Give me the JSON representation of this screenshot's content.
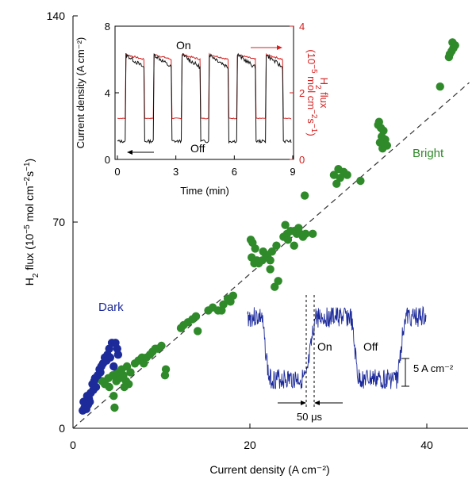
{
  "chart_data": [
    {
      "type": "scatter",
      "xlabel": "Current density (A cm⁻²)",
      "ylabel_parts": [
        "H",
        "2",
        " flux (10",
        "−5",
        " mol cm",
        "−2",
        "s",
        "−1",
        ")"
      ],
      "xlim": [
        0,
        45
      ],
      "ylim": [
        0,
        140
      ],
      "xticks": [
        0,
        20,
        40
      ],
      "yticks": [
        0,
        70,
        140
      ],
      "tick_labels_x": [
        "0",
        "20",
        "40"
      ],
      "tick_labels_y": [
        "0",
        "70",
        "140"
      ],
      "annotations": {
        "dark": "Dark",
        "bright": "Bright"
      },
      "colors": {
        "dark": "#1c2a9a",
        "bright": "#2f8a2a",
        "fit": "#333333"
      },
      "fit_line": {
        "x": [
          0,
          43
        ],
        "y": [
          0,
          116
        ]
      },
      "series": [
        {
          "name": "Dark",
          "color": "#1c2a9a",
          "points": [
            [
              1.1,
              6
            ],
            [
              1.3,
              7
            ],
            [
              1.5,
              6.5
            ],
            [
              1.7,
              8
            ],
            [
              1.2,
              9
            ],
            [
              1.8,
              10
            ],
            [
              2.0,
              12
            ],
            [
              2.3,
              13
            ],
            [
              1.6,
              11
            ],
            [
              2.2,
              15
            ],
            [
              2.4,
              16
            ],
            [
              2.6,
              14
            ],
            [
              2.8,
              18
            ],
            [
              3.0,
              20
            ],
            [
              3.2,
              21
            ],
            [
              3.4,
              22
            ],
            [
              3.1,
              19
            ],
            [
              3.6,
              24
            ],
            [
              3.9,
              25
            ],
            [
              4.1,
              27
            ],
            [
              4.4,
              29
            ],
            [
              4.8,
              29
            ],
            [
              5.0,
              27
            ],
            [
              3.8,
              23
            ],
            [
              2.5,
              17
            ],
            [
              1.9,
              9
            ],
            [
              5.1,
              25
            ],
            [
              4.6,
              21
            ],
            [
              4.2,
              24
            ]
          ]
        },
        {
          "name": "Bright",
          "color": "#2f8a2a",
          "points": [
            [
              3.3,
              16
            ],
            [
              3.6,
              15
            ],
            [
              4.0,
              17
            ],
            [
              4.5,
              18
            ],
            [
              4.9,
              16
            ],
            [
              5.3,
              17
            ],
            [
              5.7,
              18
            ],
            [
              6.0,
              16
            ],
            [
              5.0,
              19
            ],
            [
              5.5,
              20
            ],
            [
              6.1,
              21
            ],
            [
              6.3,
              15
            ],
            [
              5.8,
              14
            ],
            [
              4.6,
              11
            ],
            [
              4.7,
              7
            ],
            [
              4.1,
              14
            ],
            [
              6.5,
              19
            ],
            [
              7.0,
              22
            ],
            [
              7.4,
              23
            ],
            [
              7.8,
              24
            ],
            [
              8.3,
              24
            ],
            [
              8.7,
              25
            ],
            [
              9.0,
              26
            ],
            [
              9.3,
              27
            ],
            [
              9.6,
              27
            ],
            [
              10.0,
              28
            ],
            [
              8.0,
              22
            ],
            [
              10.5,
              20
            ],
            [
              10.4,
              18
            ],
            [
              12.2,
              34
            ],
            [
              12.5,
              35
            ],
            [
              13.0,
              36
            ],
            [
              13.5,
              37
            ],
            [
              14.1,
              33
            ],
            [
              13.9,
              38
            ],
            [
              15.3,
              40
            ],
            [
              15.8,
              41
            ],
            [
              16.4,
              40
            ],
            [
              17.0,
              42
            ],
            [
              17.5,
              44
            ],
            [
              18.1,
              45
            ],
            [
              17.8,
              43
            ],
            [
              16.8,
              40
            ],
            [
              20.1,
              64
            ],
            [
              20.3,
              63
            ],
            [
              20.6,
              61
            ],
            [
              20.2,
              58
            ],
            [
              20.8,
              57
            ],
            [
              21.0,
              56
            ],
            [
              21.4,
              57
            ],
            [
              21.8,
              59
            ],
            [
              22.0,
              58
            ],
            [
              22.3,
              57
            ],
            [
              22.5,
              60
            ],
            [
              23.0,
              62
            ],
            [
              22.8,
              48
            ],
            [
              20.5,
              56
            ],
            [
              22.3,
              54
            ],
            [
              23.2,
              50
            ],
            [
              21.5,
              60
            ],
            [
              23.8,
              65
            ],
            [
              24.2,
              66
            ],
            [
              24.6,
              67
            ],
            [
              25.0,
              67
            ],
            [
              25.3,
              66
            ],
            [
              25.7,
              66
            ],
            [
              26.0,
              65
            ],
            [
              25.0,
              62
            ],
            [
              24.3,
              64
            ],
            [
              27.1,
              66
            ],
            [
              24.0,
              69
            ],
            [
              25.5,
              68
            ],
            [
              26.3,
              66
            ],
            [
              26.2,
              79
            ],
            [
              29.5,
              86
            ],
            [
              30.2,
              85
            ],
            [
              30.0,
              88
            ],
            [
              30.6,
              87
            ],
            [
              31.0,
              86
            ],
            [
              29.8,
              83
            ],
            [
              32.5,
              84
            ],
            [
              34.5,
              103
            ],
            [
              34.8,
              102
            ],
            [
              35.1,
              101
            ],
            [
              34.9,
              99
            ],
            [
              35.3,
              98
            ],
            [
              34.6,
              104
            ],
            [
              35.0,
              95
            ],
            [
              35.5,
              96
            ],
            [
              34.7,
              97
            ],
            [
              41.5,
              116
            ],
            [
              42.5,
              126
            ],
            [
              42.8,
              128
            ],
            [
              43.0,
              129
            ],
            [
              42.9,
              131
            ],
            [
              43.2,
              130
            ],
            [
              42.6,
              127
            ]
          ]
        }
      ]
    },
    {
      "type": "line",
      "title": "",
      "xlabel": "Time (min)",
      "ylabel_left": "Current density (A cm⁻²)",
      "ylabel_right_parts": [
        "H",
        "2",
        " flux",
        "(10",
        "−5",
        " mol cm",
        "−2",
        "s",
        "−1",
        ")"
      ],
      "xlim": [
        0,
        9
      ],
      "ylim_left": [
        0,
        8
      ],
      "ylim_right": [
        0,
        4
      ],
      "xticks": [
        0,
        3,
        6,
        9
      ],
      "yticks_left": [
        0,
        4,
        8
      ],
      "yticks_right": [
        0,
        2,
        4
      ],
      "tick_labels_x": [
        "0",
        "3",
        "6",
        "9"
      ],
      "tick_labels_left": [
        "0",
        "4",
        "8"
      ],
      "tick_labels_right": [
        "0",
        "2",
        "4"
      ],
      "annotations": {
        "on": "On",
        "off": "Off"
      },
      "colors": {
        "current": "#111111",
        "h2": "#d42020",
        "axis_right": "#d42020"
      },
      "on_intervals": [
        [
          0.42,
          1.38
        ],
        [
          1.88,
          2.8
        ],
        [
          3.3,
          4.28
        ],
        [
          4.72,
          5.72
        ],
        [
          6.15,
          7.1
        ],
        [
          7.62,
          8.5
        ]
      ],
      "series": [
        {
          "name": "",
          "axis": "left",
          "on_level": [
            6.3,
            5.5
          ],
          "off_level": [
            1.0,
            1.3
          ]
        },
        {
          "name": "",
          "axis": "right",
          "on_level": [
            3.15,
            3.0
          ],
          "off_level": [
            1.22,
            1.26
          ]
        }
      ]
    }
  ],
  "oscilloscope_inset": {
    "labels": {
      "on": "On",
      "off": "Off",
      "scale": "5 A cm⁻²",
      "time": "50 μs"
    },
    "color": "#1c2a9a",
    "segments": [
      {
        "from": 0.0,
        "to": 0.08,
        "level": "high"
      },
      {
        "from": 0.12,
        "to": 0.33,
        "level": "low"
      },
      {
        "from": 0.38,
        "to": 0.58,
        "level": "high"
      },
      {
        "from": 0.62,
        "to": 0.84,
        "level": "low"
      },
      {
        "from": 0.88,
        "to": 1.0,
        "level": "high"
      }
    ]
  }
}
